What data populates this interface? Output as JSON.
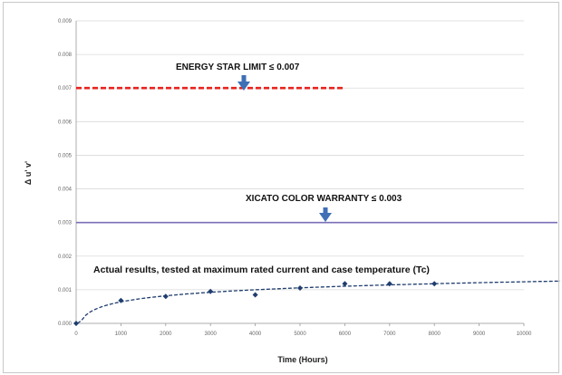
{
  "chart_data": {
    "type": "scatter",
    "xlabel": "Time (Hours)",
    "ylabel": "Δ u' v'",
    "xlim": [
      0,
      10000
    ],
    "ylim": [
      0,
      0.009
    ],
    "x_ticks": [
      "0",
      "1000",
      "2000",
      "3000",
      "4000",
      "5000",
      "6000",
      "7000",
      "8000",
      "9000",
      "10000"
    ],
    "y_ticks": [
      "0.000",
      "0.001",
      "0.002",
      "0.003",
      "0.004",
      "0.005",
      "0.006",
      "0.007",
      "0.008",
      "0.009"
    ],
    "grid": true,
    "series": [
      {
        "points": [
          {
            "x": 0,
            "y": 0.0
          },
          {
            "x": 1000,
            "y": 0.00068
          },
          {
            "x": 2000,
            "y": 0.0008
          },
          {
            "x": 3000,
            "y": 0.00095
          },
          {
            "x": 4000,
            "y": 0.00085
          },
          {
            "x": 5000,
            "y": 0.00105
          },
          {
            "x": 6000,
            "y": 0.00118
          },
          {
            "x": 7000,
            "y": 0.00118
          },
          {
            "x": 8000,
            "y": 0.00118
          }
        ],
        "trendline": "logarithmic dashed",
        "color": "#1f3d6e"
      }
    ],
    "reference_lines": [
      {
        "label": "ENERGY  STAR LIMIT ≤ 0.007",
        "y": 0.007,
        "x_end": 6000,
        "style": "dashed",
        "color": "#e8231d"
      },
      {
        "label": "XICATO COLOR WARRANTY ≤ 0.003",
        "y": 0.003,
        "style": "solid",
        "color": "#7a6fb8"
      }
    ],
    "annotations": [
      {
        "text": "Actual results, tested at maximum rated current and case temperature (Tc)"
      }
    ],
    "arrow_color": "#3f6fb5"
  }
}
